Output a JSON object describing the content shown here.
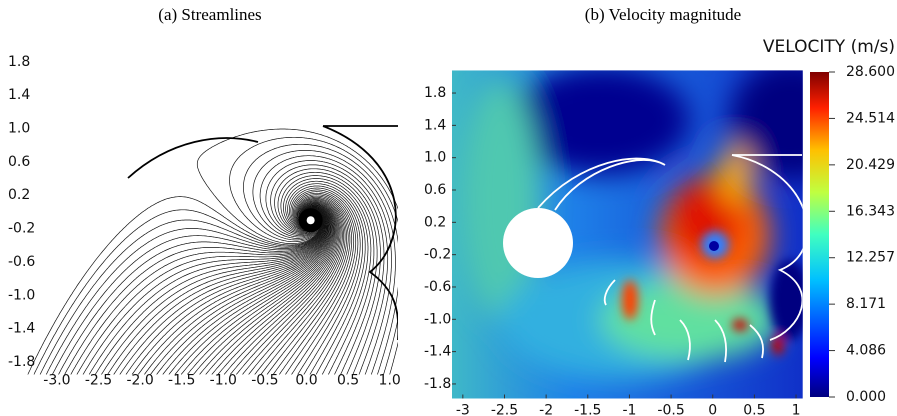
{
  "chart_data": [
    {
      "type": "streamline",
      "title": "(a) Streamlines",
      "xlim": [
        -3.45,
        1.1
      ],
      "ylim": [
        -1.95,
        2.05
      ],
      "xticks": [
        {
          "value": -3,
          "label": "-3.0"
        },
        -2.5,
        {
          "value": -2,
          "label": "-2.0"
        },
        -1.5,
        {
          "value": -1,
          "label": "-1.0"
        },
        -0.5,
        {
          "value": 0,
          "label": "0.0"
        },
        0.5,
        {
          "value": 1,
          "label": "1.0"
        }
      ],
      "yticks": [
        1.8,
        1.4,
        {
          "value": 1,
          "label": "1.0"
        },
        0.6,
        0.2,
        -0.2,
        -0.6,
        {
          "value": -1,
          "label": "-1.0"
        },
        -1.4,
        -1.8
      ]
    },
    {
      "type": "heatmap",
      "title": "(b) Velocity magnitude",
      "colorbar_title": "VELOCITY (m/s)",
      "xlim": [
        -3.13,
        1.08
      ],
      "ylim": [
        -1.98,
        2.08
      ],
      "xticks": [
        -3,
        -2.5,
        -2,
        -1.5,
        -1,
        -0.5,
        0,
        0.5,
        1
      ],
      "yticks": [
        1.8,
        1.4,
        {
          "value": 1,
          "label": "1.0"
        },
        0.6,
        0.2,
        -0.2,
        -0.6,
        {
          "value": -1,
          "label": "-1.0"
        },
        -1.4,
        -1.8
      ],
      "clim": [
        0,
        28.6
      ],
      "cticks": [
        {
          "value": 28.6,
          "label": "28.600"
        },
        24.514,
        20.429,
        16.343,
        12.257,
        8.171,
        4.086,
        {
          "value": 0,
          "label": "0.000"
        }
      ]
    }
  ]
}
